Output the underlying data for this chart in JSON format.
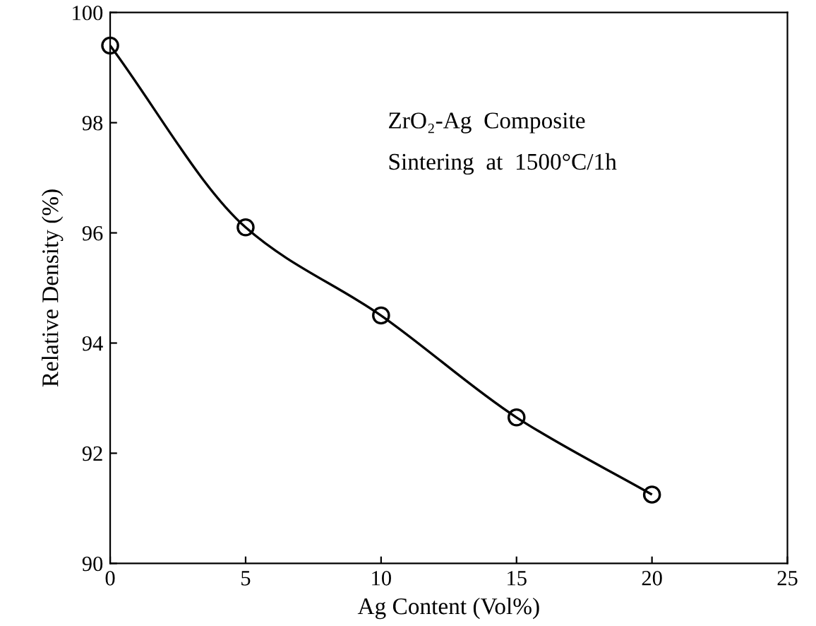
{
  "chart_data": {
    "type": "line",
    "xlabel": "Ag Content (Vol%)",
    "ylabel": "Relative Density (%)",
    "x": [
      0,
      5,
      10,
      15,
      20
    ],
    "series": [
      {
        "color": "#000000",
        "values": [
          99.4,
          96.1,
          94.5,
          92.65,
          91.25
        ]
      }
    ],
    "xlim": [
      0,
      25
    ],
    "xticks": [
      0,
      5,
      10,
      15,
      20,
      25
    ],
    "ylim": [
      90,
      100
    ],
    "yticks": [
      90,
      92,
      94,
      96,
      98,
      100
    ],
    "marker": "circle",
    "line_style": "solid",
    "grid": false,
    "annotations": [
      "ZrO₂-Ag  Composite",
      "Sintering  at  1500°C/1h"
    ]
  }
}
